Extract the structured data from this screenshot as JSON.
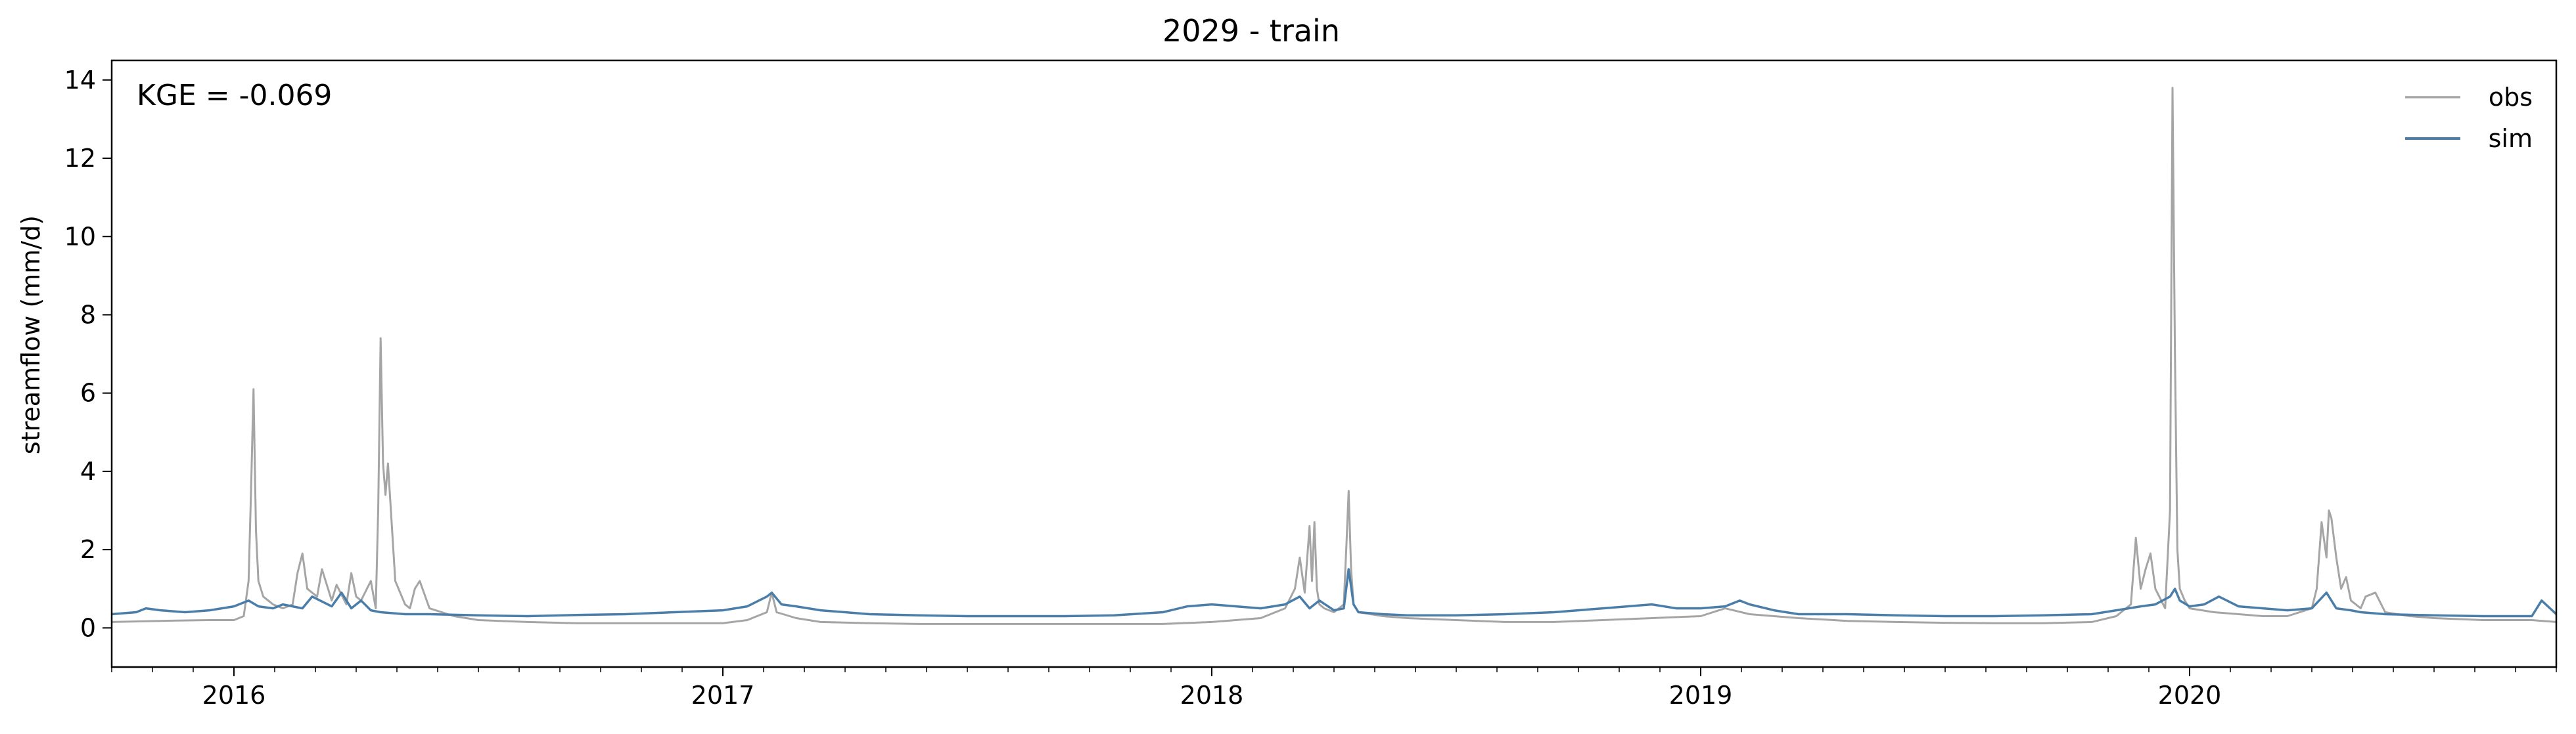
{
  "chart_data": {
    "type": "line",
    "title": "2029 - train",
    "xlabel": "",
    "ylabel": "streamflow (mm/d)",
    "annotation": "KGE = -0.069",
    "xlim": [
      2015.75,
      2020.75
    ],
    "ylim": [
      -1,
      14.5
    ],
    "yticks": [
      0,
      2,
      4,
      6,
      8,
      10,
      12,
      14
    ],
    "xtick_labels": [
      "2016",
      "2017",
      "2018",
      "2019",
      "2020"
    ],
    "xtick_values": [
      2016,
      2017,
      2018,
      2019,
      2020
    ],
    "legend_position": "top-right",
    "colors": {
      "obs": "#a5a5a5",
      "sim": "#4a7ea9"
    },
    "series": [
      {
        "name": "obs",
        "x": [
          2015.75,
          2015.85,
          2015.95,
          2016.0,
          2016.02,
          2016.03,
          2016.035,
          2016.04,
          2016.045,
          2016.05,
          2016.06,
          2016.08,
          2016.1,
          2016.12,
          2016.13,
          2016.14,
          2016.15,
          2016.17,
          2016.18,
          2016.2,
          2016.21,
          2016.23,
          2016.24,
          2016.25,
          2016.26,
          2016.28,
          2016.29,
          2016.295,
          2016.3,
          2016.305,
          2016.31,
          2016.315,
          2016.32,
          2016.33,
          2016.35,
          2016.36,
          2016.37,
          2016.38,
          2016.4,
          2016.45,
          2016.5,
          2016.6,
          2016.7,
          2016.8,
          2016.9,
          2017.0,
          2017.05,
          2017.09,
          2017.1,
          2017.11,
          2017.15,
          2017.2,
          2017.3,
          2017.4,
          2017.5,
          2017.6,
          2017.7,
          2017.8,
          2017.9,
          2018.0,
          2018.1,
          2018.15,
          2018.17,
          2018.18,
          2018.19,
          2018.2,
          2018.205,
          2018.21,
          2018.215,
          2018.22,
          2018.23,
          2018.25,
          2018.27,
          2018.275,
          2018.28,
          2018.285,
          2018.29,
          2018.3,
          2018.35,
          2018.4,
          2018.5,
          2018.6,
          2018.7,
          2018.8,
          2018.9,
          2019.0,
          2019.05,
          2019.1,
          2019.2,
          2019.3,
          2019.4,
          2019.5,
          2019.6,
          2019.7,
          2019.8,
          2019.85,
          2019.88,
          2019.89,
          2019.9,
          2019.91,
          2019.92,
          2019.93,
          2019.95,
          2019.96,
          2019.965,
          2019.97,
          2019.975,
          2019.98,
          2019.99,
          2020.0,
          2020.05,
          2020.1,
          2020.15,
          2020.2,
          2020.25,
          2020.26,
          2020.27,
          2020.28,
          2020.285,
          2020.29,
          2020.3,
          2020.31,
          2020.32,
          2020.33,
          2020.35,
          2020.36,
          2020.38,
          2020.4,
          2020.45,
          2020.5,
          2020.6,
          2020.7,
          2020.75
        ],
        "y": [
          0.15,
          0.18,
          0.2,
          0.2,
          0.3,
          1.2,
          3.5,
          6.1,
          2.5,
          1.2,
          0.8,
          0.6,
          0.5,
          0.6,
          1.4,
          1.9,
          1.0,
          0.8,
          1.5,
          0.7,
          1.1,
          0.6,
          1.4,
          0.8,
          0.7,
          1.2,
          0.5,
          3.0,
          7.4,
          4.2,
          3.4,
          4.2,
          3.2,
          1.2,
          0.6,
          0.5,
          1.0,
          1.2,
          0.5,
          0.3,
          0.2,
          0.15,
          0.12,
          0.12,
          0.12,
          0.12,
          0.2,
          0.4,
          0.9,
          0.4,
          0.25,
          0.15,
          0.12,
          0.1,
          0.1,
          0.1,
          0.1,
          0.1,
          0.1,
          0.15,
          0.25,
          0.5,
          1.0,
          1.8,
          0.9,
          2.6,
          1.2,
          2.7,
          1.0,
          0.6,
          0.5,
          0.4,
          0.6,
          2.0,
          3.5,
          1.5,
          0.6,
          0.4,
          0.3,
          0.25,
          0.2,
          0.15,
          0.15,
          0.2,
          0.25,
          0.3,
          0.5,
          0.35,
          0.25,
          0.18,
          0.15,
          0.13,
          0.12,
          0.12,
          0.15,
          0.3,
          0.6,
          2.3,
          1.0,
          1.5,
          1.9,
          1.0,
          0.5,
          3.0,
          13.8,
          7.0,
          2.0,
          1.0,
          0.7,
          0.5,
          0.4,
          0.35,
          0.3,
          0.3,
          0.5,
          1.0,
          2.7,
          1.8,
          3.0,
          2.8,
          1.8,
          1.0,
          1.3,
          0.7,
          0.5,
          0.8,
          0.9,
          0.4,
          0.3,
          0.25,
          0.2,
          0.2,
          0.15
        ]
      },
      {
        "name": "sim",
        "x": [
          2015.75,
          2015.8,
          2015.82,
          2015.85,
          2015.9,
          2015.95,
          2016.0,
          2016.03,
          2016.05,
          2016.08,
          2016.1,
          2016.14,
          2016.16,
          2016.2,
          2016.22,
          2016.24,
          2016.26,
          2016.28,
          2016.3,
          2016.35,
          2016.4,
          2016.5,
          2016.6,
          2016.7,
          2016.8,
          2016.9,
          2017.0,
          2017.05,
          2017.09,
          2017.1,
          2017.12,
          2017.15,
          2017.2,
          2017.3,
          2017.4,
          2017.5,
          2017.6,
          2017.7,
          2017.8,
          2017.9,
          2017.95,
          2018.0,
          2018.05,
          2018.1,
          2018.15,
          2018.18,
          2018.2,
          2018.22,
          2018.25,
          2018.27,
          2018.28,
          2018.29,
          2018.3,
          2018.35,
          2018.4,
          2018.5,
          2018.6,
          2018.7,
          2018.8,
          2018.85,
          2018.9,
          2018.95,
          2019.0,
          2019.05,
          2019.08,
          2019.1,
          2019.15,
          2019.2,
          2019.3,
          2019.4,
          2019.5,
          2019.6,
          2019.7,
          2019.8,
          2019.85,
          2019.9,
          2019.93,
          2019.96,
          2019.97,
          2019.98,
          2020.0,
          2020.03,
          2020.06,
          2020.1,
          2020.15,
          2020.2,
          2020.25,
          2020.28,
          2020.3,
          2020.33,
          2020.35,
          2020.4,
          2020.5,
          2020.6,
          2020.7,
          2020.72,
          2020.75
        ],
        "y": [
          0.35,
          0.4,
          0.5,
          0.45,
          0.4,
          0.45,
          0.55,
          0.7,
          0.55,
          0.5,
          0.6,
          0.5,
          0.8,
          0.55,
          0.9,
          0.5,
          0.7,
          0.45,
          0.4,
          0.35,
          0.35,
          0.32,
          0.3,
          0.33,
          0.35,
          0.4,
          0.45,
          0.55,
          0.8,
          0.9,
          0.6,
          0.55,
          0.45,
          0.35,
          0.32,
          0.3,
          0.3,
          0.3,
          0.32,
          0.4,
          0.55,
          0.6,
          0.55,
          0.5,
          0.6,
          0.8,
          0.5,
          0.7,
          0.45,
          0.5,
          1.5,
          0.6,
          0.4,
          0.35,
          0.32,
          0.32,
          0.35,
          0.4,
          0.5,
          0.55,
          0.6,
          0.5,
          0.5,
          0.55,
          0.7,
          0.6,
          0.45,
          0.35,
          0.35,
          0.32,
          0.3,
          0.3,
          0.32,
          0.35,
          0.45,
          0.55,
          0.6,
          0.8,
          1.0,
          0.7,
          0.55,
          0.6,
          0.8,
          0.55,
          0.5,
          0.45,
          0.5,
          0.9,
          0.5,
          0.45,
          0.4,
          0.35,
          0.32,
          0.3,
          0.3,
          0.7,
          0.35
        ]
      }
    ]
  }
}
